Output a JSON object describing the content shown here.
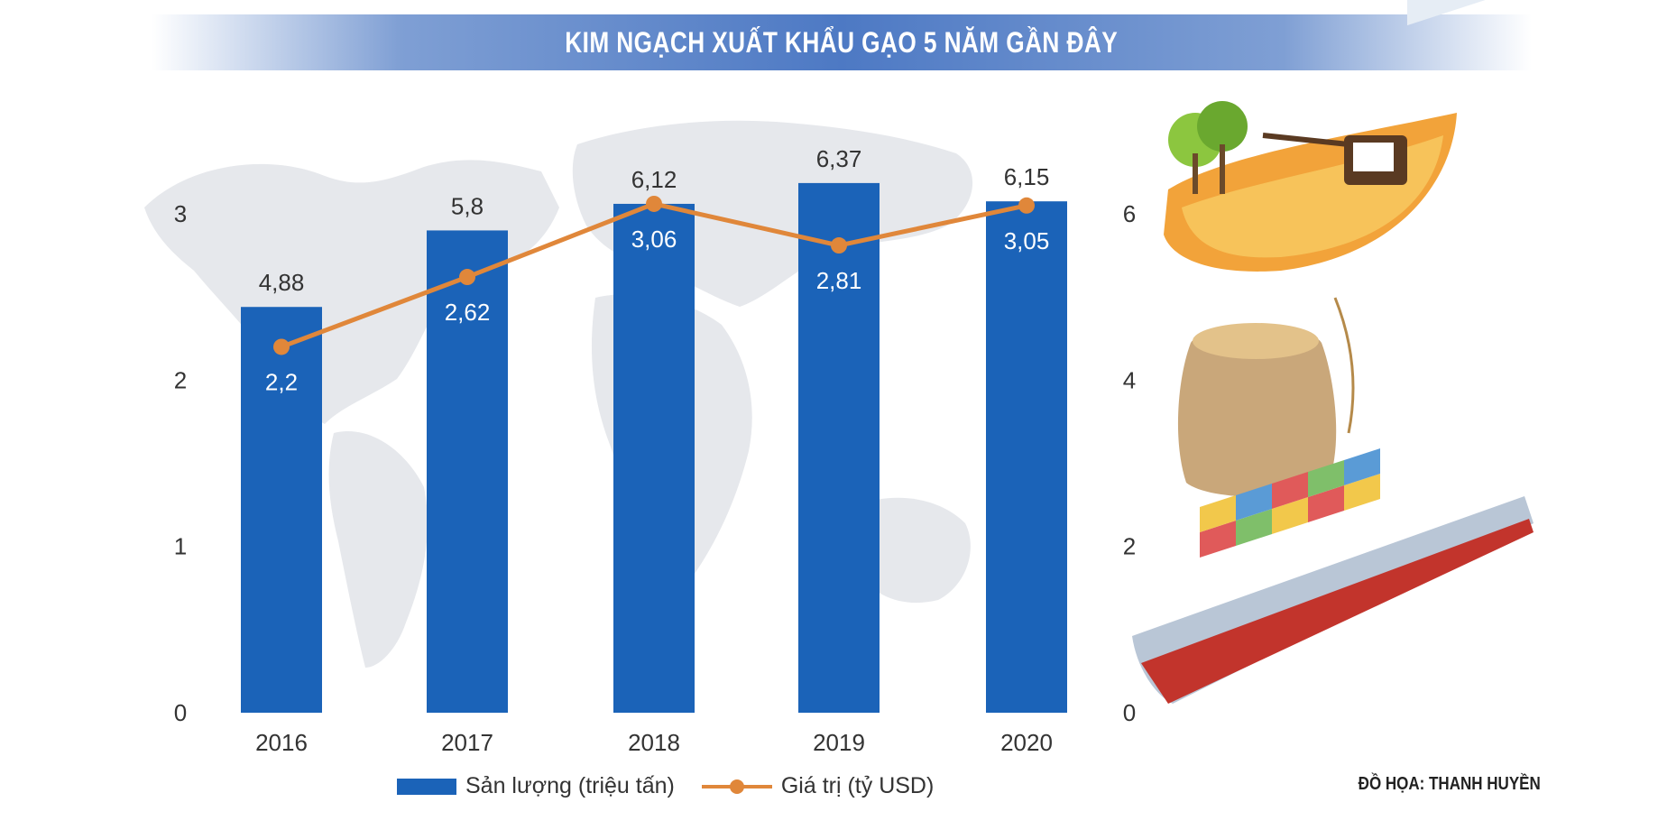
{
  "title": "KIM NGẠCH XUẤT KHẨU GẠO 5 NĂM GẦN ĐÂY",
  "credit": "ĐỒ HỌA: THANH HUYỀN",
  "colors": {
    "bar": "#1b63b8",
    "line": "#e0873a",
    "title_bg": "#4d79c4"
  },
  "chart_data": {
    "type": "bar",
    "categories": [
      "2016",
      "2017",
      "2018",
      "2019",
      "2020"
    ],
    "series": [
      {
        "name": "Sản lượng (triệu tấn)",
        "type": "bar",
        "axis": "right",
        "values": [
          4.88,
          5.8,
          6.12,
          6.37,
          6.15
        ],
        "labels": [
          "4,88",
          "5,8",
          "6,12",
          "6,37",
          "6,15"
        ]
      },
      {
        "name": "Giá trị (tỷ USD)",
        "type": "line",
        "axis": "left",
        "values": [
          2.2,
          2.62,
          3.06,
          2.81,
          3.05
        ],
        "labels": [
          "2,2",
          "2,62",
          "3,06",
          "2,81",
          "3,05"
        ]
      }
    ],
    "left_axis": {
      "ylim": [
        0,
        3
      ],
      "ticks": [
        "0",
        "1",
        "2",
        "3"
      ]
    },
    "right_axis": {
      "ylim": [
        0,
        6
      ],
      "ticks": [
        "0",
        "2",
        "4",
        "6"
      ]
    },
    "grid": false,
    "legend_position": "bottom"
  }
}
